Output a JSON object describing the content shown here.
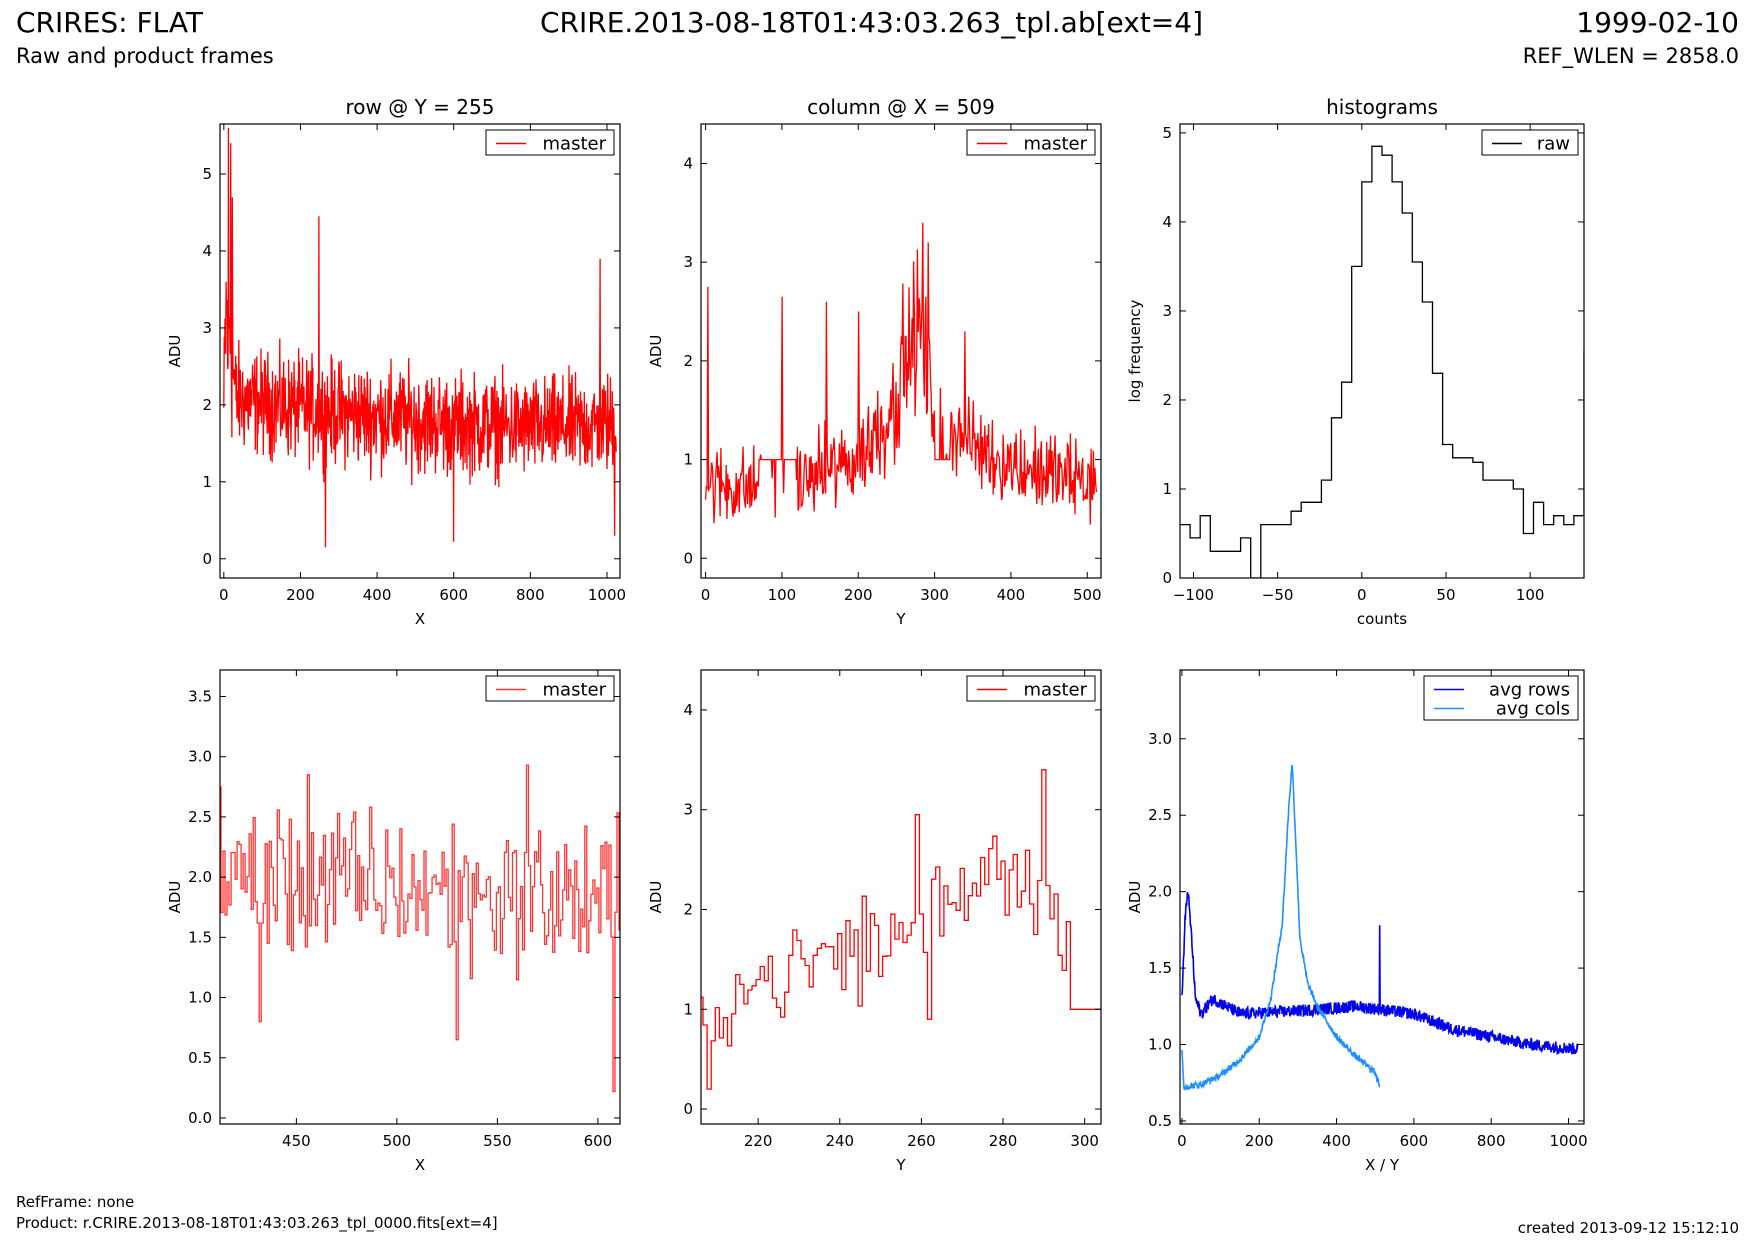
{
  "header": {
    "title": "CRIRES: FLAT",
    "subtitle": "Raw and product frames",
    "file": "CRIRE.2013-08-18T01:43:03.263_tpl.ab[ext=4]",
    "date": "1999-02-10",
    "ref_wlen": "REF_WLEN = 2858.0"
  },
  "footer": {
    "refframe": "RefFrame: none",
    "product": "Product: r.CRIRE.2013-08-18T01:43:03.263_tpl_0000.fits[ext=4]",
    "created": "created 2013-09-12 15:12:10"
  },
  "colors": {
    "red": "#ff0000",
    "red_light": "#ff3333",
    "blue": "#0000ee",
    "lightblue": "#1e90ff",
    "black": "#000000"
  },
  "chart_data": [
    {
      "id": "row",
      "type": "line",
      "title": "row @ Y = 255",
      "xlabel": "X",
      "ylabel": "ADU",
      "xlim": [
        -10,
        1034
      ],
      "ylim": [
        -0.25,
        5.65
      ],
      "xticks": [
        0,
        200,
        400,
        600,
        800,
        1000
      ],
      "yticks": [
        0,
        1,
        2,
        3,
        4,
        5
      ],
      "legend": "upper right",
      "series": [
        {
          "name": "master",
          "color": "#ff0000",
          "style": "noise",
          "x_range": [
            0,
            1024
          ],
          "n": 1024,
          "envelope": [
            [
              0,
              1.0,
              2.8
            ],
            [
              5,
              1.0,
              5.2
            ],
            [
              10,
              1.0,
              5.0
            ],
            [
              20,
              1.1,
              4.5
            ],
            [
              30,
              1.2,
              3.0
            ],
            [
              60,
              1.2,
              2.9
            ],
            [
              200,
              1.1,
              2.8
            ],
            [
              400,
              1.0,
              2.7
            ],
            [
              600,
              0.9,
              2.6
            ],
            [
              800,
              0.9,
              2.5
            ],
            [
              1024,
              0.9,
              2.6
            ]
          ],
          "spikes": [
            [
              12,
              5.6
            ],
            [
              18,
              5.4
            ],
            [
              22,
              4.7
            ],
            [
              248,
              4.45
            ],
            [
              265,
              0.15
            ],
            [
              600,
              0.22
            ],
            [
              982,
              3.9
            ],
            [
              1020,
              0.3
            ]
          ]
        }
      ]
    },
    {
      "id": "column",
      "type": "line",
      "title": "column @ X = 509",
      "xlabel": "Y",
      "ylabel": "ADU",
      "xlim": [
        -6,
        518
      ],
      "ylim": [
        -0.2,
        4.4
      ],
      "xticks": [
        0,
        100,
        200,
        300,
        400,
        500
      ],
      "yticks": [
        0,
        1,
        2,
        3,
        4
      ],
      "legend": "upper right",
      "series": [
        {
          "name": "master",
          "color": "#ff0000",
          "style": "noise",
          "x_range": [
            0,
            512
          ],
          "n": 512,
          "envelope": [
            [
              0,
              0.2,
              1.3
            ],
            [
              100,
              0.2,
              1.2
            ],
            [
              200,
              0.4,
              1.6
            ],
            [
              240,
              0.7,
              2.2
            ],
            [
              260,
              1.0,
              2.9
            ],
            [
              280,
              1.4,
              3.3
            ],
            [
              300,
              0.9,
              2.0
            ],
            [
              350,
              0.6,
              1.7
            ],
            [
              400,
              0.4,
              1.5
            ],
            [
              512,
              0.2,
              1.3
            ]
          ],
          "spikes": [
            [
              3,
              2.75
            ],
            [
              100,
              2.65
            ],
            [
              158,
              2.6
            ],
            [
              200,
              2.5
            ],
            [
              285,
              3.4
            ],
            [
              292,
              3.2
            ],
            [
              340,
              2.3
            ]
          ],
          "flat_segments": [
            [
              70,
              120,
              1.0
            ],
            [
              300,
              320,
              1.0
            ]
          ]
        }
      ]
    },
    {
      "id": "histogram",
      "type": "line",
      "title": "histograms",
      "xlabel": "counts",
      "ylabel": "log frequency",
      "xlim": [
        -108,
        132
      ],
      "ylim": [
        0,
        5.1
      ],
      "xticks": [
        -100,
        -50,
        0,
        50,
        100
      ],
      "yticks": [
        0,
        1,
        2,
        3,
        4,
        5
      ],
      "legend": "upper right",
      "series": [
        {
          "name": "raw",
          "color": "#000000",
          "style": "steps",
          "x": [
            -108,
            -102,
            -96,
            -90,
            -84,
            -78,
            -72,
            -66,
            -60,
            -54,
            -48,
            -42,
            -36,
            -30,
            -24,
            -18,
            -12,
            -6,
            0,
            6,
            12,
            18,
            24,
            30,
            36,
            42,
            48,
            54,
            60,
            66,
            72,
            78,
            84,
            90,
            96,
            102,
            108,
            114,
            120,
            126,
            132
          ],
          "y": [
            0.6,
            0.45,
            0.7,
            0.3,
            0.3,
            0.3,
            0.45,
            0,
            0.6,
            0.6,
            0.6,
            0.75,
            0.85,
            0.85,
            1.1,
            1.8,
            2.2,
            3.5,
            4.45,
            4.85,
            4.75,
            4.45,
            4.1,
            3.55,
            3.1,
            2.3,
            1.5,
            1.35,
            1.35,
            1.3,
            1.1,
            1.1,
            1.1,
            1.0,
            0.5,
            0.85,
            0.6,
            0.7,
            0.6,
            0.7,
            2.55
          ]
        }
      ]
    },
    {
      "id": "row-zoom",
      "type": "line",
      "xlabel": "X",
      "ylabel": "ADU",
      "xlim": [
        412,
        611
      ],
      "ylim": [
        -0.05,
        3.72
      ],
      "xticks": [
        450,
        500,
        550,
        600
      ],
      "yticks": [
        0.0,
        0.5,
        1.0,
        1.5,
        2.0,
        2.5,
        3.0,
        3.5
      ],
      "legend": "upper right",
      "series": [
        {
          "name": "master",
          "color": "#ff3333",
          "style": "steps",
          "x_range": [
            412,
            611
          ],
          "n": 200,
          "envelope": [
            [
              412,
              1.2,
              2.8
            ],
            [
              611,
              1.0,
              2.6
            ]
          ],
          "spikes": [
            [
              412,
              2.75
            ],
            [
              432,
              0.8
            ],
            [
              456,
              2.85
            ],
            [
              530,
              0.65
            ],
            [
              565,
              2.93
            ],
            [
              608,
              0.22
            ]
          ]
        }
      ]
    },
    {
      "id": "column-zoom",
      "type": "line",
      "xlabel": "Y",
      "ylabel": "ADU",
      "xlim": [
        206,
        304
      ],
      "ylim": [
        -0.15,
        4.4
      ],
      "xticks": [
        220,
        240,
        260,
        280,
        300
      ],
      "yticks": [
        0,
        1,
        2,
        3,
        4
      ],
      "legend": "upper right",
      "series": [
        {
          "name": "master",
          "color": "#ff0000",
          "style": "steps",
          "x_range": [
            206,
            304
          ],
          "n": 99,
          "envelope": [
            [
              206,
              0.4,
              1.2
            ],
            [
              215,
              0.6,
              1.8
            ],
            [
              240,
              0.9,
              2.2
            ],
            [
              260,
              1.0,
              2.6
            ],
            [
              275,
              1.8,
              3.1
            ],
            [
              290,
              1.5,
              3.4
            ],
            [
              296,
              1.0,
              2.2
            ],
            [
              304,
              1.0,
              1.0
            ]
          ],
          "spikes": [
            [
              208,
              0.2
            ],
            [
              259,
              2.95
            ],
            [
              262,
              0.9
            ],
            [
              290,
              3.4
            ]
          ],
          "flat_segments": [
            [
              297,
              304,
              1.0
            ]
          ]
        }
      ]
    },
    {
      "id": "averages",
      "type": "line",
      "xlabel": "X / Y",
      "ylabel": "ADU",
      "xlim": [
        -5,
        1040
      ],
      "ylim": [
        0.48,
        3.45
      ],
      "xticks": [
        0,
        200,
        400,
        600,
        800,
        1000
      ],
      "yticks": [
        0.5,
        1.0,
        1.5,
        2.0,
        2.5,
        3.0
      ],
      "legend": "upper right",
      "series": [
        {
          "name": "avg rows",
          "color": "#0000ee",
          "style": "curve",
          "x_range": [
            0,
            1024
          ],
          "n": 1024,
          "profile": [
            [
              0,
              1.3
            ],
            [
              8,
              1.8
            ],
            [
              15,
              2.02
            ],
            [
              25,
              1.7
            ],
            [
              35,
              1.3
            ],
            [
              50,
              1.2
            ],
            [
              80,
              1.3
            ],
            [
              150,
              1.2
            ],
            [
              300,
              1.22
            ],
            [
              450,
              1.25
            ],
            [
              600,
              1.2
            ],
            [
              700,
              1.1
            ],
            [
              800,
              1.05
            ],
            [
              900,
              1.0
            ],
            [
              1024,
              0.97
            ]
          ],
          "noise": 0.04,
          "spikes": [
            [
              512,
              1.78
            ]
          ]
        },
        {
          "name": "avg cols",
          "color": "#1e90ff",
          "style": "curve",
          "x_range": [
            0,
            512
          ],
          "n": 512,
          "profile": [
            [
              0,
              0.95
            ],
            [
              5,
              0.72
            ],
            [
              50,
              0.74
            ],
            [
              100,
              0.8
            ],
            [
              150,
              0.9
            ],
            [
              200,
              1.05
            ],
            [
              230,
              1.3
            ],
            [
              260,
              1.8
            ],
            [
              275,
              2.5
            ],
            [
              285,
              2.85
            ],
            [
              295,
              2.3
            ],
            [
              305,
              1.7
            ],
            [
              325,
              1.4
            ],
            [
              350,
              1.25
            ],
            [
              400,
              1.05
            ],
            [
              450,
              0.92
            ],
            [
              500,
              0.82
            ],
            [
              512,
              0.72
            ]
          ],
          "noise": 0.02
        }
      ]
    }
  ]
}
